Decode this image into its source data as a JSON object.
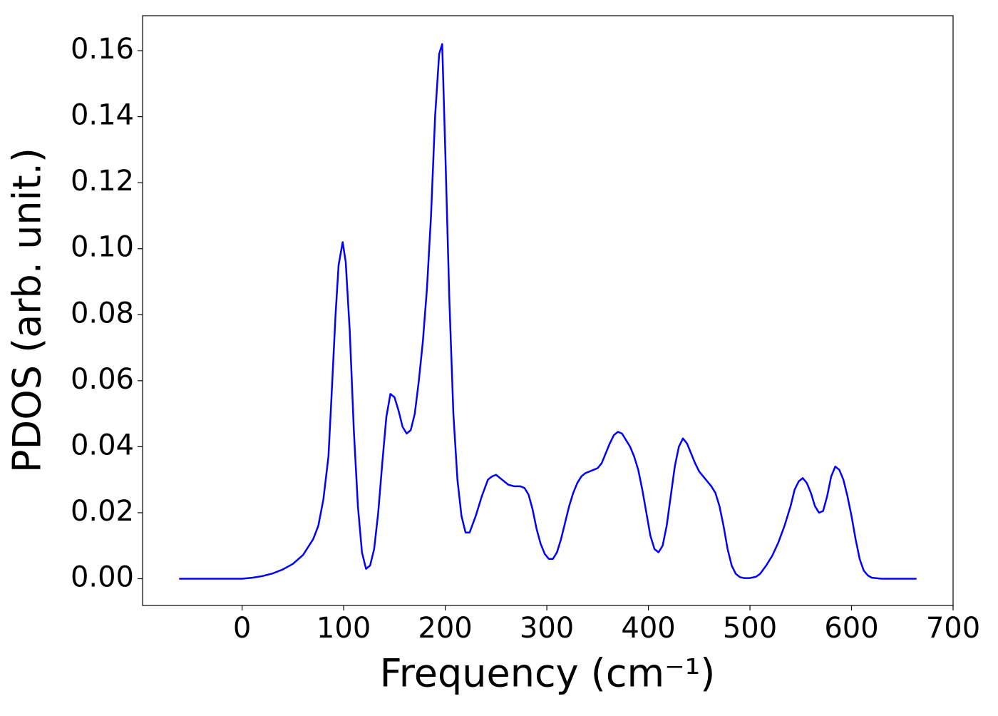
{
  "chart_data": {
    "type": "line",
    "xlabel": "Frequency (cm⁻¹)",
    "ylabel": "PDOS (arb. unit.)",
    "x": [
      -62,
      -40,
      -20,
      0,
      10,
      20,
      30,
      40,
      50,
      60,
      70,
      75,
      80,
      85,
      88,
      92,
      95,
      99,
      102,
      106,
      110,
      114,
      118,
      122,
      126,
      130,
      134,
      138,
      142,
      146,
      150,
      154,
      158,
      162,
      166,
      170,
      174,
      178,
      182,
      186,
      190,
      194,
      197,
      200,
      204,
      208,
      212,
      216,
      220,
      224,
      230,
      236,
      242,
      246,
      250,
      256,
      262,
      268,
      274,
      278,
      282,
      286,
      290,
      294,
      298,
      302,
      306,
      310,
      314,
      318,
      322,
      326,
      330,
      334,
      338,
      342,
      346,
      350,
      354,
      358,
      362,
      366,
      370,
      374,
      378,
      382,
      386,
      390,
      394,
      398,
      402,
      406,
      410,
      414,
      418,
      422,
      426,
      430,
      434,
      438,
      442,
      446,
      450,
      454,
      458,
      462,
      466,
      470,
      474,
      478,
      482,
      486,
      490,
      494,
      500,
      506,
      510,
      516,
      522,
      528,
      534,
      540,
      544,
      548,
      552,
      556,
      560,
      564,
      568,
      572,
      576,
      580,
      584,
      588,
      592,
      596,
      600,
      604,
      608,
      612,
      616,
      620,
      630,
      645,
      664
    ],
    "series": [
      {
        "color": "#0000ff",
        "values": [
          0,
          0,
          0,
          0,
          0.0003,
          0.0008,
          0.0016,
          0.0028,
          0.0045,
          0.0072,
          0.012,
          0.016,
          0.024,
          0.037,
          0.055,
          0.08,
          0.095,
          0.102,
          0.096,
          0.075,
          0.045,
          0.022,
          0.008,
          0.003,
          0.004,
          0.009,
          0.02,
          0.035,
          0.049,
          0.056,
          0.055,
          0.051,
          0.046,
          0.044,
          0.045,
          0.05,
          0.06,
          0.072,
          0.088,
          0.11,
          0.14,
          0.159,
          0.162,
          0.13,
          0.085,
          0.05,
          0.03,
          0.019,
          0.014,
          0.014,
          0.019,
          0.025,
          0.03,
          0.031,
          0.0315,
          0.03,
          0.0285,
          0.028,
          0.028,
          0.0275,
          0.0255,
          0.021,
          0.015,
          0.0105,
          0.0075,
          0.006,
          0.006,
          0.008,
          0.012,
          0.017,
          0.022,
          0.026,
          0.029,
          0.031,
          0.032,
          0.0325,
          0.033,
          0.0335,
          0.035,
          0.038,
          0.041,
          0.0435,
          0.0445,
          0.044,
          0.042,
          0.04,
          0.037,
          0.033,
          0.027,
          0.02,
          0.013,
          0.009,
          0.008,
          0.01,
          0.016,
          0.025,
          0.034,
          0.04,
          0.0425,
          0.041,
          0.038,
          0.035,
          0.0325,
          0.031,
          0.0295,
          0.028,
          0.026,
          0.022,
          0.016,
          0.009,
          0.004,
          0.0015,
          0.0005,
          0.0002,
          0.0002,
          0.0006,
          0.0015,
          0.004,
          0.007,
          0.011,
          0.016,
          0.022,
          0.027,
          0.0295,
          0.0305,
          0.029,
          0.026,
          0.022,
          0.02,
          0.0205,
          0.025,
          0.031,
          0.034,
          0.033,
          0.03,
          0.025,
          0.019,
          0.012,
          0.006,
          0.0025,
          0.001,
          0.0003,
          0,
          0,
          0
        ]
      }
    ],
    "xlim": [
      -98,
      700
    ],
    "xticks": [
      0,
      100,
      200,
      300,
      400,
      500,
      600,
      700
    ],
    "ylim": [
      -0.0081,
      0.1706
    ],
    "yticks": [
      {
        "value": 0,
        "label": "0.00"
      },
      0.02,
      0.04,
      0.06,
      0.08,
      {
        "value": 0.1,
        "label": "0.10"
      },
      0.12,
      0.14,
      0.16
    ],
    "grid": false
  }
}
